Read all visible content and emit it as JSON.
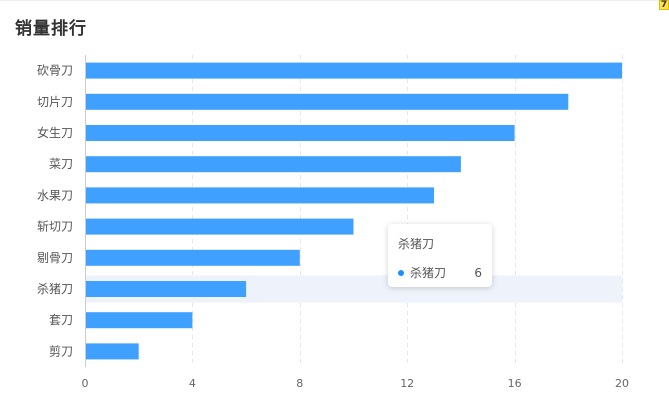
{
  "title": "销量排行",
  "corner_badge": "7",
  "tooltip": {
    "title": "杀猪刀",
    "name": "杀猪刀",
    "value": "6",
    "dot_color": "#1890ff"
  },
  "chart_data": {
    "type": "bar",
    "orientation": "horizontal",
    "categories": [
      "砍骨刀",
      "切片刀",
      "女生刀",
      "菜刀",
      "水果刀",
      "斩切刀",
      "剔骨刀",
      "杀猪刀",
      "套刀",
      "剪刀"
    ],
    "values": [
      20,
      18,
      16,
      14,
      13,
      10,
      8,
      6,
      4,
      2
    ],
    "xlim": [
      0,
      20
    ],
    "xticks": [
      0,
      4,
      8,
      12,
      16,
      20
    ],
    "highlighted_category": "杀猪刀",
    "bar_color": "#40a0ff",
    "highlight_color": "#eef2fa",
    "grid": "vertical-dashed",
    "title": "销量排行",
    "xlabel": "",
    "ylabel": ""
  }
}
